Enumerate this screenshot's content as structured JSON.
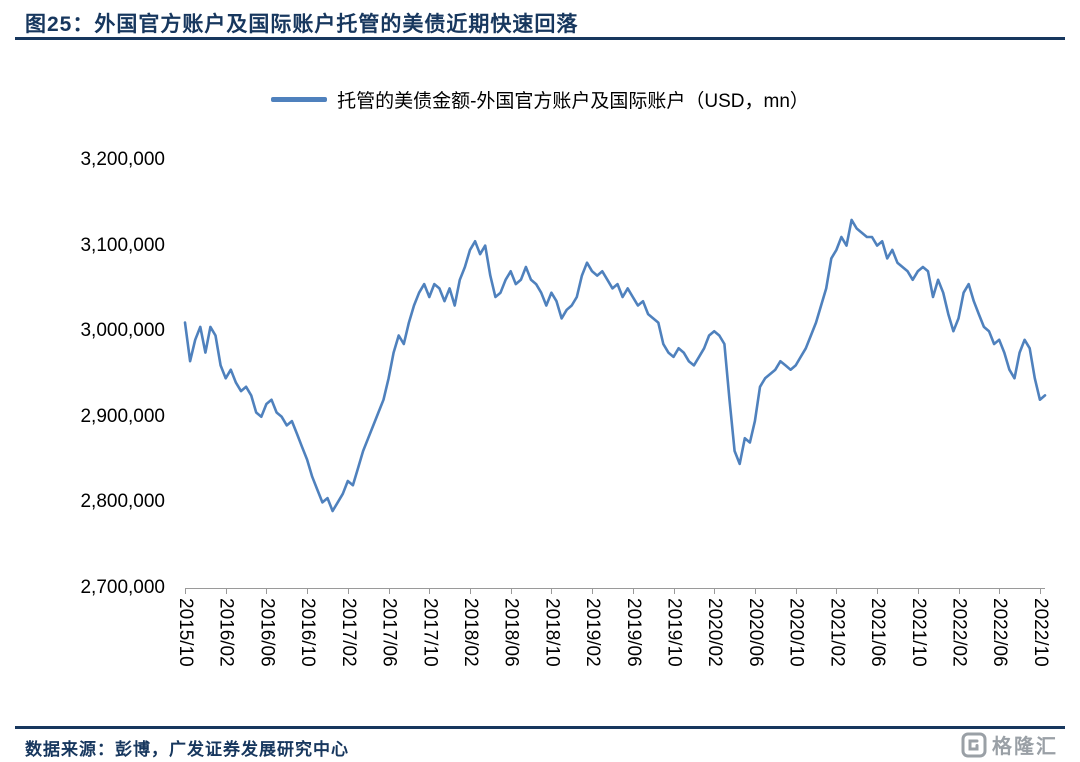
{
  "header": {
    "title": "图25：外国官方账户及国际账户托管的美债近期快速回落"
  },
  "colors": {
    "accent_navy": "#17375e",
    "line_blue": "#4f81bd",
    "axis_gray": "#9a9a9a",
    "logo_gray": "#9aa0a6"
  },
  "chart_data": {
    "type": "line",
    "legend": "托管的美债金额-外国官方账户及国际账户（USD，mn）",
    "series_name": "托管的美债金额-外国官方账户及国际账户",
    "unit": "USD, mn",
    "line_color": "#4f81bd",
    "grid": false,
    "legend_position": "top-center",
    "ylim": [
      2700000,
      3200000
    ],
    "y_ticks": [
      "3,200,000",
      "3,100,000",
      "3,000,000",
      "2,900,000",
      "2,800,000",
      "2,700,000"
    ],
    "x_tick_labels": [
      "2015/10",
      "2016/02",
      "2016/06",
      "2016/10",
      "2017/02",
      "2017/06",
      "2017/10",
      "2018/02",
      "2018/06",
      "2018/10",
      "2019/02",
      "2019/06",
      "2019/10",
      "2020/02",
      "2020/06",
      "2020/10",
      "2021/02",
      "2021/06",
      "2021/10",
      "2022/02",
      "2022/06",
      "2022/10"
    ],
    "sampling": "semi-monthly from 2015/10 to 2022/10",
    "points_per_tick": 8,
    "values": [
      3010000,
      2965000,
      2990000,
      3005000,
      2975000,
      3005000,
      2995000,
      2960000,
      2945000,
      2955000,
      2940000,
      2930000,
      2935000,
      2925000,
      2905000,
      2900000,
      2915000,
      2920000,
      2905000,
      2900000,
      2890000,
      2895000,
      2880000,
      2865000,
      2850000,
      2830000,
      2815000,
      2800000,
      2805000,
      2790000,
      2800000,
      2810000,
      2825000,
      2820000,
      2840000,
      2860000,
      2875000,
      2890000,
      2905000,
      2920000,
      2945000,
      2975000,
      2995000,
      2985000,
      3010000,
      3030000,
      3045000,
      3055000,
      3040000,
      3055000,
      3050000,
      3035000,
      3050000,
      3030000,
      3060000,
      3075000,
      3095000,
      3105000,
      3090000,
      3100000,
      3065000,
      3040000,
      3045000,
      3060000,
      3070000,
      3055000,
      3060000,
      3075000,
      3060000,
      3055000,
      3045000,
      3030000,
      3045000,
      3035000,
      3015000,
      3025000,
      3030000,
      3040000,
      3065000,
      3080000,
      3070000,
      3065000,
      3070000,
      3060000,
      3050000,
      3055000,
      3040000,
      3050000,
      3040000,
      3030000,
      3035000,
      3020000,
      3015000,
      3010000,
      2985000,
      2975000,
      2970000,
      2980000,
      2975000,
      2965000,
      2960000,
      2970000,
      2980000,
      2995000,
      3000000,
      2995000,
      2985000,
      2920000,
      2860000,
      2845000,
      2875000,
      2870000,
      2895000,
      2935000,
      2945000,
      2950000,
      2955000,
      2965000,
      2960000,
      2955000,
      2960000,
      2970000,
      2980000,
      2995000,
      3010000,
      3030000,
      3050000,
      3085000,
      3095000,
      3110000,
      3100000,
      3130000,
      3120000,
      3115000,
      3110000,
      3110000,
      3100000,
      3105000,
      3085000,
      3095000,
      3080000,
      3075000,
      3070000,
      3060000,
      3070000,
      3075000,
      3070000,
      3040000,
      3060000,
      3045000,
      3020000,
      3000000,
      3015000,
      3045000,
      3055000,
      3035000,
      3020000,
      3005000,
      3000000,
      2985000,
      2990000,
      2975000,
      2955000,
      2945000,
      2975000,
      2990000,
      2980000,
      2945000,
      2920000,
      2925000
    ]
  },
  "footer": {
    "source": "数据来源：彭博，广发证券发展研究中心"
  },
  "brand": {
    "text": "格隆汇"
  }
}
